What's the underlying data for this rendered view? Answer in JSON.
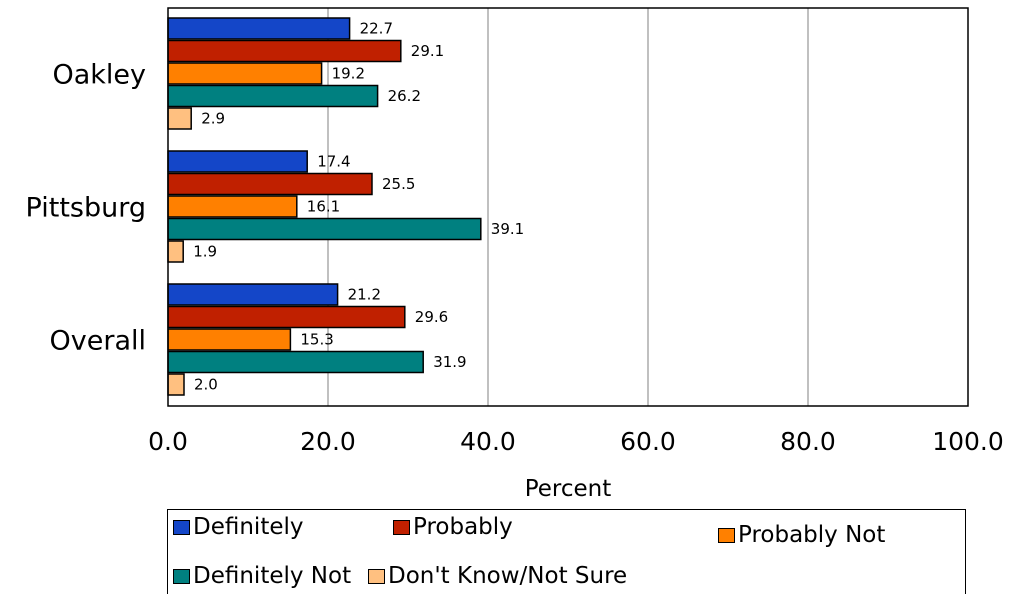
{
  "chart_data": {
    "type": "bar",
    "orientation": "horizontal",
    "categories": [
      "Oakley",
      "Pittsburg",
      "Overall"
    ],
    "series": [
      {
        "name": "Definitely",
        "color": "#1446c8",
        "values": [
          22.7,
          17.4,
          21.2
        ]
      },
      {
        "name": "Probably",
        "color": "#c02000",
        "values": [
          29.1,
          25.5,
          29.6
        ]
      },
      {
        "name": "Probably Not",
        "color": "#ff8000",
        "values": [
          19.2,
          16.1,
          15.3
        ]
      },
      {
        "name": "Definitely Not",
        "color": "#008080",
        "values": [
          26.2,
          39.1,
          31.9
        ]
      },
      {
        "name": "Don't Know/Not Sure",
        "color": "#ffc080",
        "values": [
          2.9,
          1.9,
          2.0
        ]
      }
    ],
    "data_labels": [
      [
        "22.7",
        "17.4",
        "21.2"
      ],
      [
        "29.1",
        "25.5",
        "29.6"
      ],
      [
        "19.2",
        "16.1",
        "15.3"
      ],
      [
        "26.2",
        "39.1",
        "31.9"
      ],
      [
        "2.9",
        "1.9",
        "2.0"
      ]
    ],
    "xlim": [
      0,
      100
    ],
    "ticks": [
      0,
      20,
      40,
      60,
      80,
      100
    ],
    "tick_labels": [
      "0.0",
      "20.0",
      "40.0",
      "60.0",
      "80.0",
      "100.0"
    ],
    "xlabel": "Percent",
    "grid": "vertical",
    "legend_position": "bottom"
  }
}
